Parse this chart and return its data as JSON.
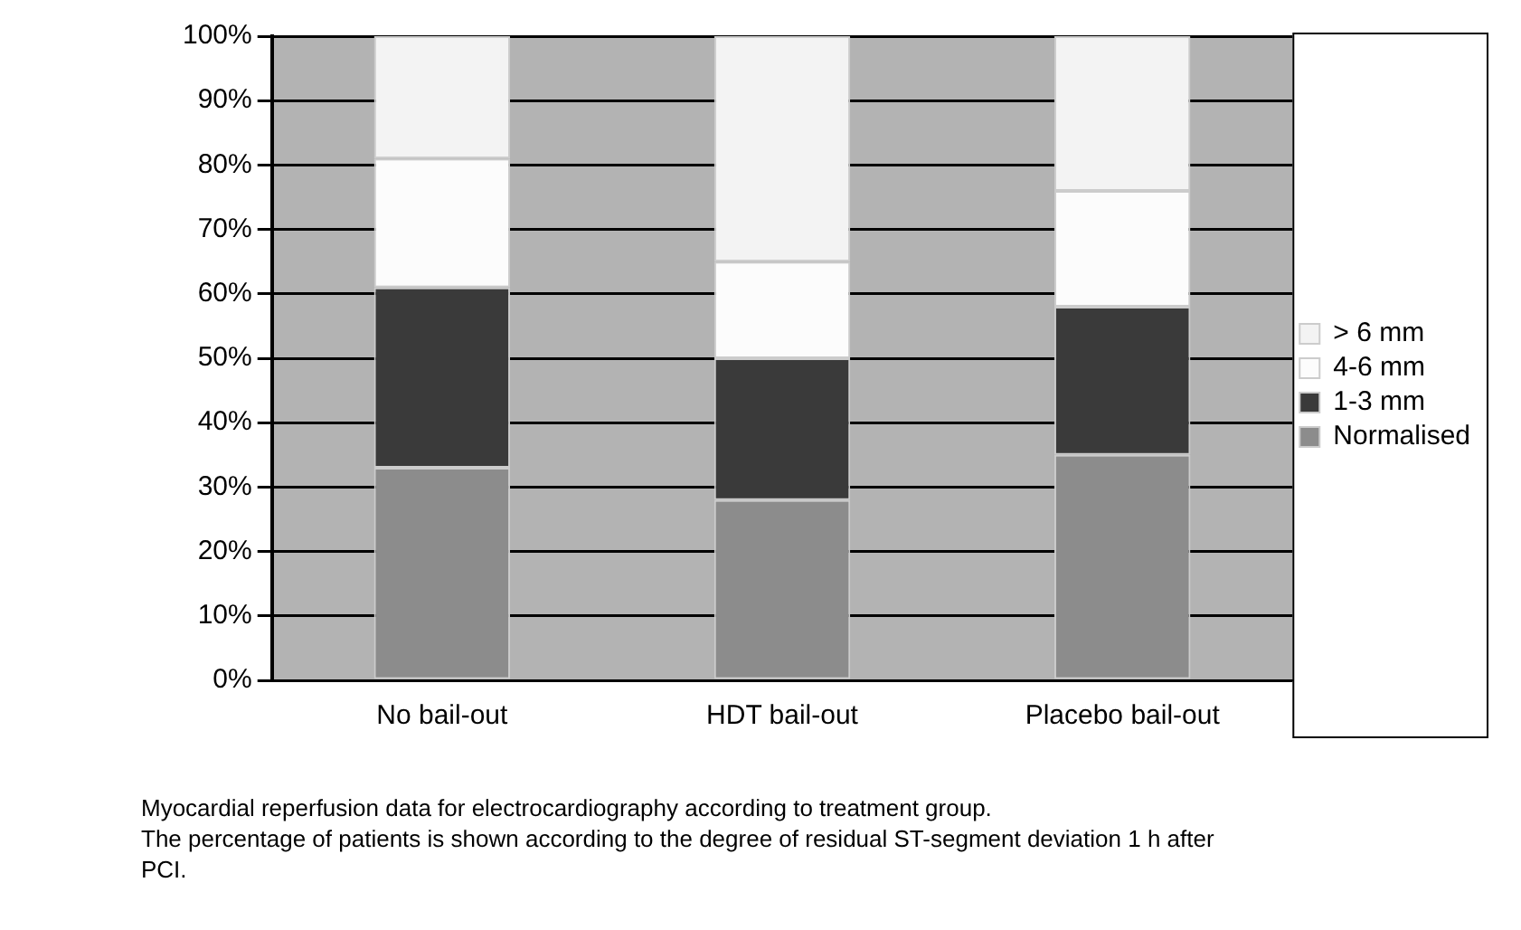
{
  "chart_data": {
    "type": "bar",
    "stacked": true,
    "categories": [
      "No bail-out",
      "HDT bail-out",
      "Placebo bail-out"
    ],
    "series": [
      {
        "name": "Normalised",
        "color": "#8c8c8c",
        "values": [
          33,
          28,
          35
        ]
      },
      {
        "name": "1-3 mm",
        "color": "#3a3a3a",
        "values": [
          28,
          22,
          23
        ]
      },
      {
        "name": "4-6 mm",
        "color": "#fcfcfc",
        "values": [
          20,
          15,
          18
        ]
      },
      {
        "name": "> 6 mm",
        "color": "#f3f3f3",
        "values": [
          19,
          35,
          24
        ]
      }
    ],
    "ylim": [
      0,
      100
    ],
    "yticks": [
      {
        "value": 0,
        "label": "0%"
      },
      {
        "value": 10,
        "label": "10%"
      },
      {
        "value": 20,
        "label": "20%"
      },
      {
        "value": 30,
        "label": "30%"
      },
      {
        "value": 40,
        "label": "40%"
      },
      {
        "value": 50,
        "label": "50%"
      },
      {
        "value": 60,
        "label": "60%"
      },
      {
        "value": 70,
        "label": "70%"
      },
      {
        "value": 80,
        "label": "80%"
      },
      {
        "value": 90,
        "label": "90%"
      },
      {
        "value": 100,
        "label": "100%"
      }
    ],
    "grid": "y",
    "legend": "right",
    "annotations": [
      "Myocardial reperfusion data for electrocardiography according to treatment group.",
      "The percentage of patients is shown according to the degree of residual ST-segment deviation 1 h after PCI."
    ]
  }
}
